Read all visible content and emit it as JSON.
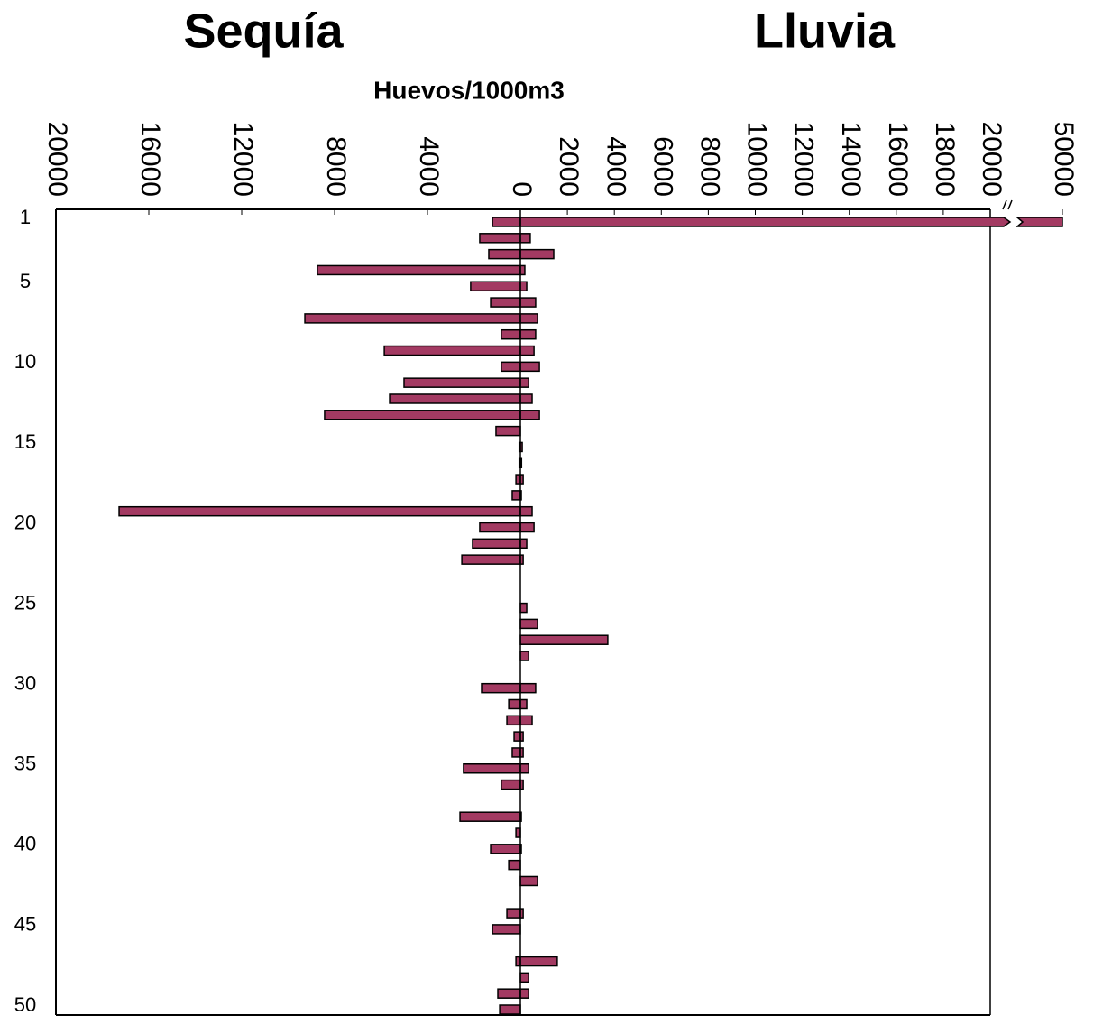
{
  "chart_data": {
    "type": "butterfly-bar",
    "axis_title": "Huevos/1000m3",
    "categories": [
      "1",
      null,
      null,
      null,
      "5",
      null,
      null,
      null,
      null,
      "10",
      null,
      null,
      null,
      null,
      "15",
      null,
      null,
      null,
      null,
      "20",
      null,
      null,
      null,
      null,
      "25",
      null,
      null,
      null,
      null,
      "30",
      null,
      null,
      null,
      null,
      "35",
      null,
      null,
      null,
      null,
      "40",
      null,
      null,
      null,
      null,
      "45",
      null,
      null,
      null,
      null,
      "50"
    ],
    "series": [
      {
        "name": "Sequía",
        "side": "left",
        "color": "#a33a62",
        "values": [
          1200,
          1750,
          1360,
          8740,
          2140,
          1280,
          9280,
          820,
          5860,
          820,
          5010,
          5630,
          8430,
          1050,
          50,
          50,
          190,
          350,
          17280,
          1750,
          2060,
          2520,
          0,
          0,
          0,
          0,
          0,
          0,
          0,
          1670,
          500,
          580,
          270,
          350,
          2450,
          820,
          0,
          2600,
          190,
          1280,
          500,
          0,
          0,
          580,
          1200,
          0,
          190,
          0,
          970,
          890
        ]
      },
      {
        "name": "Lluvia",
        "side": "right",
        "color": "#a33a62",
        "values": [
          50000,
          420,
          1420,
          190,
          270,
          650,
          730,
          650,
          580,
          810,
          350,
          500,
          810,
          0,
          80,
          50,
          120,
          40,
          500,
          580,
          270,
          120,
          0,
          0,
          270,
          730,
          3720,
          350,
          0,
          650,
          270,
          500,
          120,
          120,
          350,
          120,
          0,
          40,
          0,
          40,
          0,
          730,
          0,
          120,
          0,
          0,
          1570,
          350,
          350,
          0
        ]
      }
    ],
    "xlim_left": [
      0,
      20000
    ],
    "xticks_left": [
      4000,
      8000,
      12000,
      16000,
      20000
    ],
    "xlim_right": [
      0,
      20000
    ],
    "xticks_right": [
      0,
      2000,
      4000,
      6000,
      8000,
      10000,
      12000,
      14000,
      16000,
      18000,
      20000,
      50000
    ],
    "axis_break": [
      20000,
      50000
    ]
  }
}
